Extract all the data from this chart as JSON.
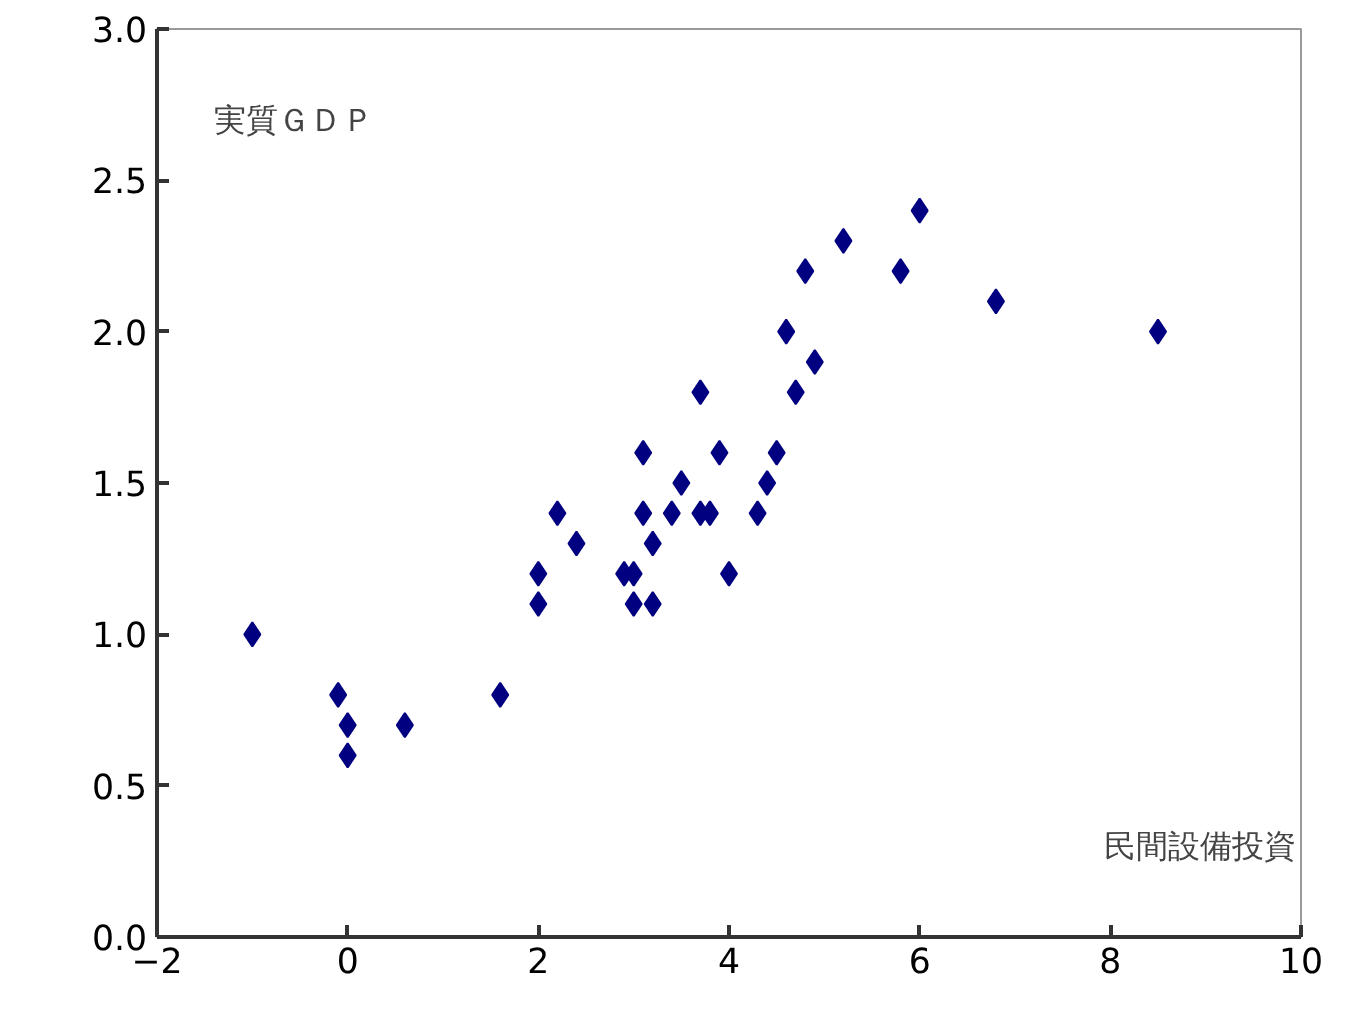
{
  "chart_data": {
    "type": "scatter",
    "ylabel": "実質ＧＤＰ",
    "xlabel": "民間設備投資",
    "x": [
      -1,
      -0.1,
      0,
      0,
      0.6,
      1.6,
      2,
      2,
      2.2,
      2.4,
      2.9,
      3,
      3,
      3.1,
      3.1,
      3.2,
      3.2,
      3.4,
      3.5,
      3.7,
      3.7,
      3.8,
      3.9,
      4,
      4.3,
      4.4,
      4.5,
      4.6,
      4.7,
      4.8,
      4.9,
      5.2,
      5.8,
      6,
      6.8,
      8.5
    ],
    "values": [
      1.0,
      0.8,
      0.7,
      0.6,
      0.7,
      0.8,
      1.2,
      1.1,
      1.4,
      1.3,
      1.2,
      1.2,
      1.1,
      1.6,
      1.4,
      1.3,
      1.1,
      1.4,
      1.5,
      1.8,
      1.4,
      1.4,
      1.6,
      1.2,
      1.4,
      1.5,
      1.6,
      2.0,
      1.8,
      2.2,
      1.9,
      2.3,
      2.2,
      2.4,
      2.1,
      2.0
    ],
    "color": "#000080",
    "marker": "diamond",
    "xlim": [
      -2,
      10
    ],
    "ylim": [
      0,
      3
    ],
    "xticks": [
      {
        "value": -2,
        "label": "−2"
      },
      0,
      2,
      4,
      6,
      8,
      10
    ],
    "yticks": [
      {
        "value": 0,
        "label": "0.0"
      },
      {
        "value": 0.5,
        "label": "0.5"
      },
      {
        "value": 1,
        "label": "1.0"
      },
      {
        "value": 1.5,
        "label": "1.5"
      },
      {
        "value": 2,
        "label": "2.0"
      },
      {
        "value": 2.5,
        "label": "2.5"
      },
      {
        "value": 3,
        "label": "3.0"
      }
    ],
    "grid": false,
    "legend": false
  }
}
